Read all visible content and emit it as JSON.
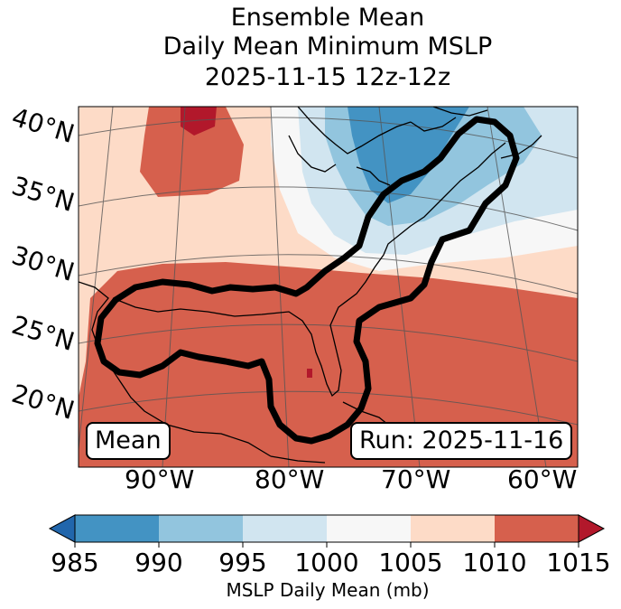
{
  "title": {
    "line1": "Ensemble Mean",
    "line2": "Daily Mean Minimum MSLP",
    "line3": "2025-11-15 12z-12z"
  },
  "lat_labels": [
    "40°N",
    "35°N",
    "30°N",
    "25°N",
    "20°N"
  ],
  "lon_labels": [
    "90°W",
    "80°W",
    "70°W",
    "60°W"
  ],
  "annotations": {
    "left": "Mean",
    "right": "Run: 2025-11-16"
  },
  "colorbar": {
    "ticks": [
      "985",
      "990",
      "995",
      "1000",
      "1005",
      "1010",
      "1015"
    ],
    "label": "MSLP Daily Mean (mb)",
    "colors": [
      "#2166ac",
      "#4393c3",
      "#92c5de",
      "#d1e5f0",
      "#f7f7f7",
      "#fddbc7",
      "#d6604d",
      "#b2182b"
    ]
  },
  "chart_data": {
    "type": "heatmap",
    "title": "Ensemble Mean Daily Mean Minimum MSLP 2025-11-15 12z-12z",
    "variable": "MSLP Daily Mean (mb)",
    "bins": [
      985,
      990,
      995,
      1000,
      1005,
      1010,
      1015
    ],
    "lat_ticks": [
      40,
      35,
      30,
      25,
      20
    ],
    "lon_ticks": [
      -90,
      -80,
      -70,
      -60
    ],
    "run": "2025-11-16"
  }
}
